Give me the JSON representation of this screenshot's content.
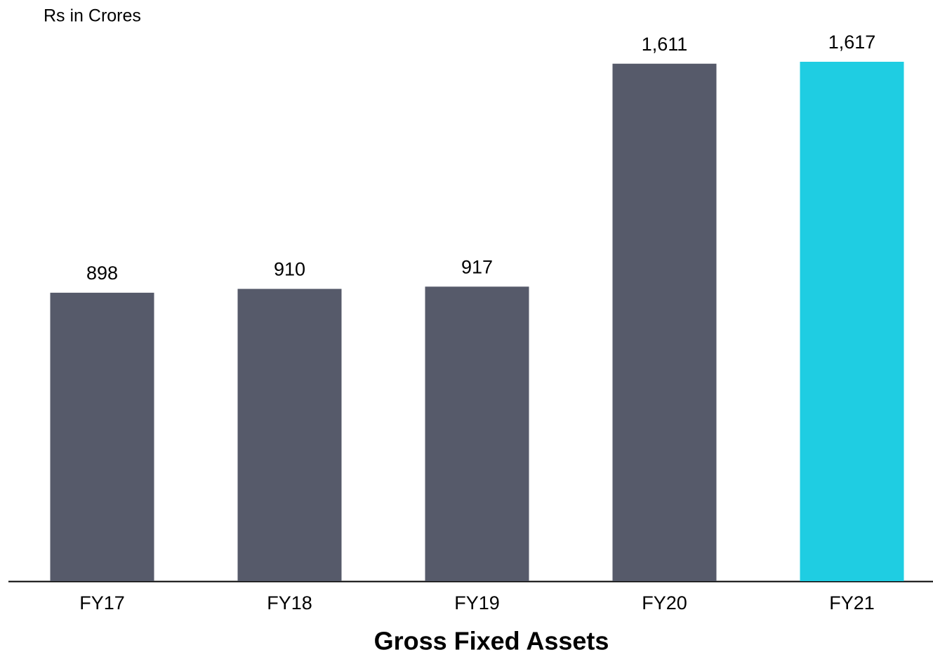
{
  "chart_data": {
    "type": "bar",
    "title": "Gross Fixed Assets",
    "subtitle": "Rs in Crores",
    "categories": [
      "FY17",
      "FY18",
      "FY19",
      "FY20",
      "FY21"
    ],
    "values": [
      898,
      910,
      917,
      1611,
      1617
    ],
    "value_labels": [
      "898",
      "910",
      "917",
      "1,611",
      "1,617"
    ],
    "colors": [
      "#565a6a",
      "#565a6a",
      "#565a6a",
      "#565a6a",
      "#1fcde2"
    ]
  }
}
